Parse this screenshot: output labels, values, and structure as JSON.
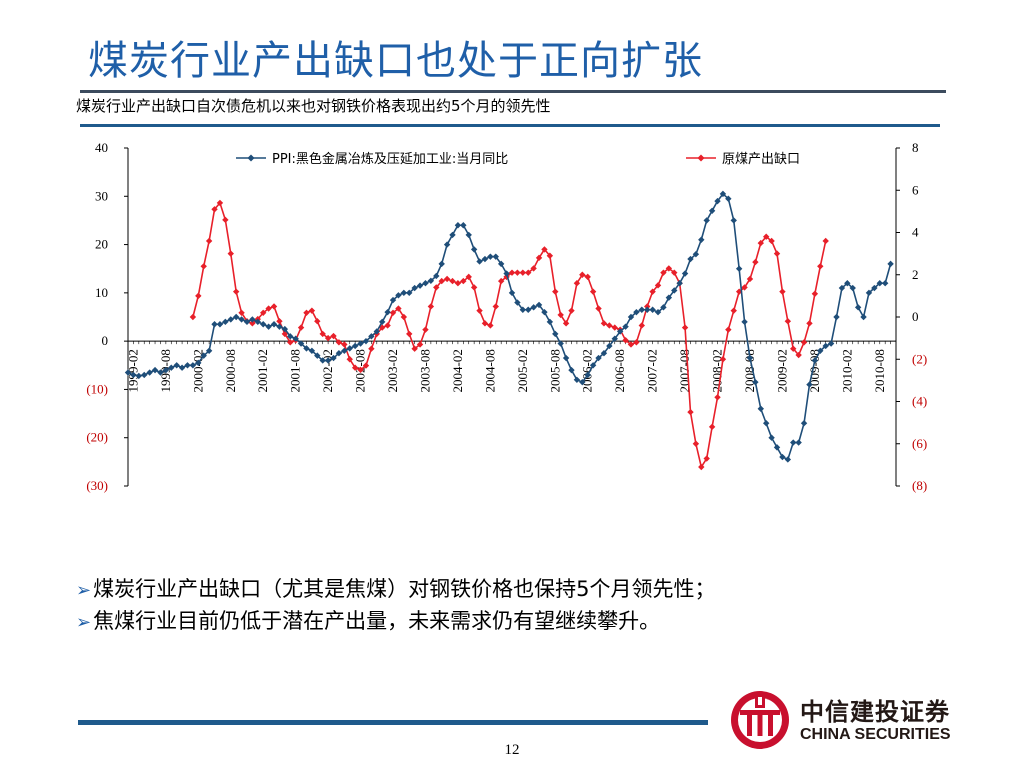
{
  "page": {
    "title": "煤炭行业产出缺口也处于正向扩张",
    "subtitle": "煤炭行业产出缺口自次债危机以来也对钢铁价格表现出约5个月的领先性",
    "bullets": [
      "煤炭行业产出缺口（尤其是焦煤）对钢铁价格也保持5个月领先性；",
      "焦煤行业目前仍低于潜在产出量，未来需求仍有望继续攀升。"
    ],
    "page_number": "12",
    "logo": {
      "cn": "中信建投证券",
      "en": "CHINA SECURITIES"
    },
    "colors": {
      "title": "#1f5fa8",
      "series1": "#1f4e79",
      "series2": "#e8202a",
      "rule": "#1f5a8c"
    }
  },
  "chart_data": {
    "type": "line",
    "x_tick_labels": [
      "1999-02",
      "1999-08",
      "2000-02",
      "2000-08",
      "2001-02",
      "2001-08",
      "2002-02",
      "2002-08",
      "2003-02",
      "2003-08",
      "2004-02",
      "2004-08",
      "2005-02",
      "2005-08",
      "2006-02",
      "2006-08",
      "2007-02",
      "2007-08",
      "2008-02",
      "2008-08",
      "2009-02",
      "2009-08",
      "2010-02",
      "2010-08"
    ],
    "left_axis": {
      "ylim": [
        -30,
        40
      ],
      "ticks": [
        "40",
        "30",
        "20",
        "10",
        "0",
        "(10)",
        "(20)",
        "(30)"
      ]
    },
    "right_axis": {
      "ylim": [
        -8,
        8
      ],
      "ticks": [
        "8",
        "6",
        "4",
        "2",
        "0",
        "(2)",
        "(4)",
        "(6)",
        "(8)"
      ]
    },
    "series": [
      {
        "name": "PPI:黑色金属冶炼及压延加工业:当月同比",
        "axis": "left",
        "start": "1999-01",
        "values": [
          -6.5,
          -7,
          -7.2,
          -7,
          -6.5,
          -6,
          -6.5,
          -6,
          -5.5,
          -5,
          -5.5,
          -5,
          -5,
          -4.5,
          -3,
          -2,
          3.5,
          3.5,
          4,
          4.5,
          5,
          4.5,
          4,
          4.5,
          4,
          3.5,
          3,
          3.5,
          3,
          2.5,
          1,
          0.5,
          -0.5,
          -1.5,
          -2,
          -3,
          -4,
          -4,
          -3.5,
          -2.5,
          -2,
          -1.5,
          -1,
          -0.5,
          0,
          1,
          2,
          4,
          6,
          8.5,
          9.5,
          10,
          10,
          11,
          11.5,
          12,
          12.5,
          13.5,
          16,
          20,
          22,
          24,
          24,
          22,
          19,
          16.5,
          17,
          17.5,
          17.5,
          16,
          14,
          10,
          8,
          6.5,
          6.5,
          7,
          7.5,
          6,
          4,
          1.5,
          -0.5,
          -3.5,
          -6,
          -8,
          -8.5,
          -7,
          -5,
          -3.5,
          -2.5,
          -1,
          0.5,
          2,
          3,
          5,
          6,
          6.5,
          6.5,
          6.5,
          6,
          7,
          9,
          10.5,
          12,
          14,
          17,
          18,
          21,
          25,
          27,
          29,
          30.5,
          29.5,
          25,
          15,
          4,
          -3.5,
          -8.5,
          -14,
          -17,
          -20,
          -22,
          -24,
          -24.5,
          -21,
          -21,
          -17,
          -9,
          -4,
          -2,
          -1,
          -0.5,
          5,
          11,
          12,
          11,
          7,
          5,
          10,
          11,
          12,
          12,
          16
        ]
      },
      {
        "name": "原煤产出缺口",
        "axis": "right",
        "start": "2000-01",
        "values": [
          0,
          1,
          2.4,
          3.6,
          5.1,
          5.4,
          4.6,
          3,
          1.2,
          0.2,
          -0.2,
          -0.3,
          -0.1,
          0.2,
          0.4,
          0.5,
          -0.2,
          -0.8,
          -1.2,
          -1.1,
          -0.5,
          0.2,
          0.3,
          -0.2,
          -0.8,
          -1,
          -0.9,
          -1.2,
          -1.3,
          -2,
          -2.4,
          -2.5,
          -2.3,
          -1.5,
          -0.8,
          -0.5,
          -0.4,
          0.2,
          0.4,
          0,
          -0.8,
          -1.5,
          -1.3,
          -0.6,
          0.5,
          1.4,
          1.7,
          1.8,
          1.7,
          1.6,
          1.7,
          1.9,
          1.4,
          0.3,
          -0.3,
          -0.4,
          0.5,
          1.7,
          1.9,
          2.1,
          2.1,
          2.1,
          2.1,
          2.3,
          2.8,
          3.2,
          2.9,
          1.2,
          0.1,
          -0.3,
          0.3,
          1.6,
          2,
          1.9,
          1.2,
          0.4,
          -0.3,
          -0.4,
          -0.5,
          -0.6,
          -1.1,
          -1.3,
          -1.2,
          -0.4,
          0.5,
          1.2,
          1.5,
          2.1,
          2.3,
          2.1,
          1.6,
          -0.5,
          -4.5,
          -6,
          -7.1,
          -6.7,
          -5.2,
          -3.8,
          -2,
          -0.6,
          0.3,
          1.2,
          1.4,
          1.8,
          2.6,
          3.5,
          3.8,
          3.6,
          3,
          1.2,
          -0.2,
          -1.5,
          -1.8,
          -1.2,
          -0.3,
          1.1,
          2.4,
          3.6
        ]
      }
    ],
    "legend": "top",
    "grid": false
  }
}
